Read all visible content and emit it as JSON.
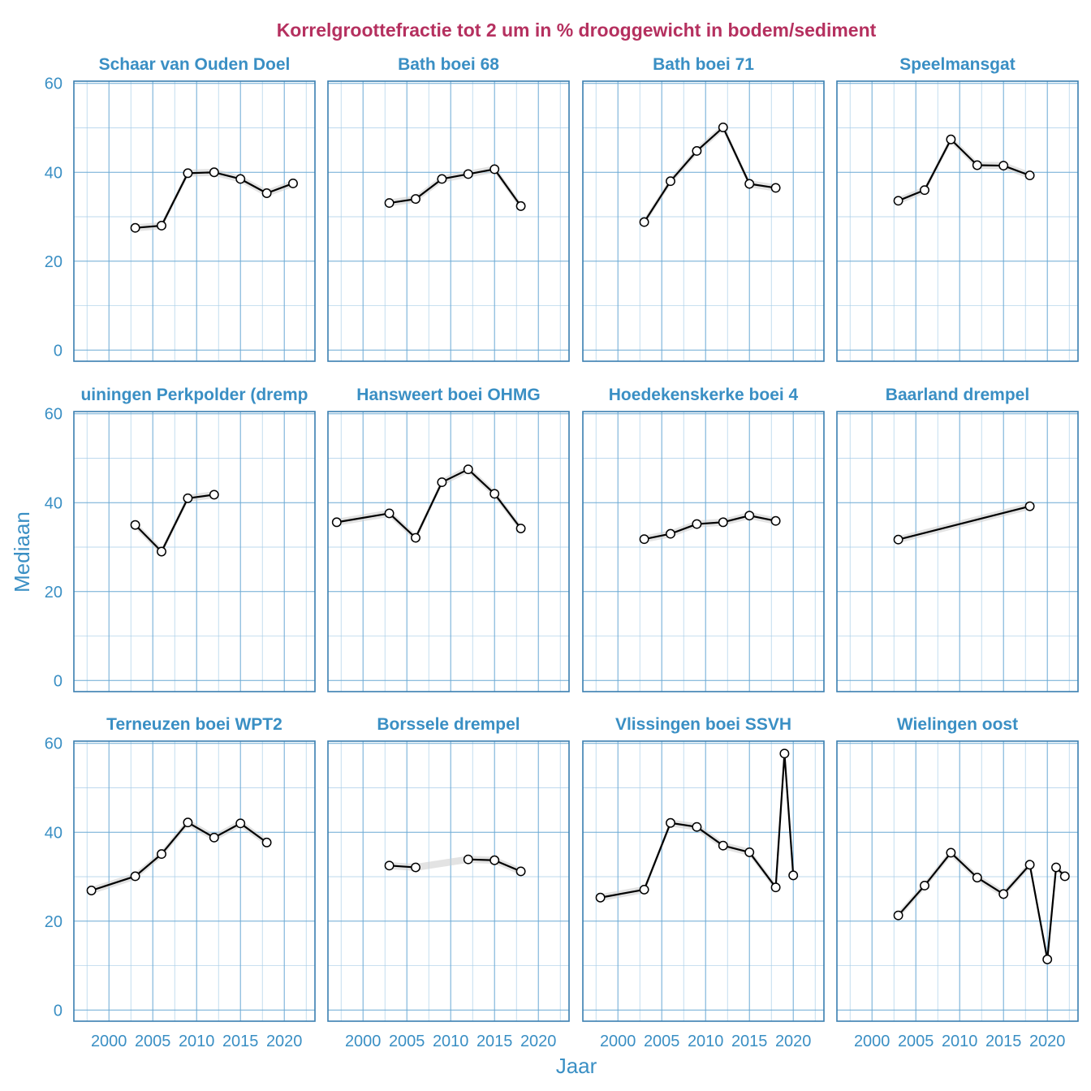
{
  "chart_data": {
    "type": "line",
    "title": "Korrelgroottefractie tot 2 um in % drooggewicht in bodem/sediment",
    "xlabel": "Jaar",
    "ylabel": "Mediaan",
    "xlim": [
      1996,
      2023.5
    ],
    "ylim": [
      -2.5,
      60.5
    ],
    "x_ticks": [
      2000,
      2005,
      2010,
      2015,
      2020
    ],
    "y_ticks": [
      0,
      20,
      40,
      60
    ],
    "colors": {
      "title": "#b5305f",
      "axis_text": "#3a8fc4",
      "panel_border": "#3a7fb0",
      "grid_major": "#6aa9d4",
      "grid_minor": "#a9cde8",
      "line": "#000000",
      "ribbon": "#cccccc"
    },
    "panels": [
      {
        "name": "Schaar van Ouden Doel",
        "x": [
          2003,
          2006,
          2009,
          2012,
          2015,
          2018,
          2021
        ],
        "y": [
          27.5,
          28.0,
          39.8,
          40.0,
          38.5,
          35.3,
          37.5
        ]
      },
      {
        "name": "Bath boei 68",
        "x": [
          2003,
          2006,
          2009,
          2012,
          2015,
          2018
        ],
        "y": [
          33.1,
          34.0,
          38.5,
          39.6,
          40.7,
          32.4
        ]
      },
      {
        "name": "Bath boei 71",
        "x": [
          2003,
          2006,
          2009,
          2012,
          2015,
          2018
        ],
        "y": [
          28.8,
          38.0,
          44.8,
          50.1,
          37.4,
          36.5
        ]
      },
      {
        "name": "Speelmansgat",
        "x": [
          2003,
          2006,
          2009,
          2012,
          2015,
          2018
        ],
        "y": [
          33.6,
          36.0,
          47.4,
          41.6,
          41.5,
          39.3
        ]
      },
      {
        "name": "Hansweert boei OHMG",
        "x": [
          1997,
          2003,
          2006,
          2009,
          2012,
          2015,
          2018
        ],
        "y": [
          35.6,
          37.6,
          32.1,
          44.6,
          47.5,
          42.0,
          34.2
        ]
      },
      {
        "name": "Hoedekenskerke boei 4",
        "x": [
          2003,
          2006,
          2009,
          2012,
          2015,
          2018
        ],
        "y": [
          31.8,
          33.0,
          35.2,
          35.6,
          37.1,
          35.9
        ]
      },
      {
        "name": "Baarland drempel",
        "x": [
          2003,
          2018
        ],
        "y": [
          31.7,
          39.2
        ]
      },
      {
        "name": "Terneuzen boei WPT2",
        "x": [
          1998,
          2003,
          2006,
          2009,
          2012,
          2015,
          2018
        ],
        "y": [
          26.9,
          30.1,
          35.1,
          42.2,
          38.8,
          42.0,
          37.7
        ]
      },
      {
        "name": "Borssele drempel",
        "x": [
          2003,
          2006,
          2012,
          2015,
          2018
        ],
        "y": [
          32.5,
          32.1,
          33.9,
          33.7,
          31.2
        ]
      },
      {
        "name": "Vlissingen boei SSVH",
        "x": [
          1998,
          2003,
          2006,
          2009,
          2012,
          2015,
          2018,
          2019,
          2020
        ],
        "y": [
          25.3,
          27.1,
          42.1,
          41.2,
          37.0,
          35.5,
          27.6,
          57.7,
          30.3
        ]
      },
      {
        "name": "Wielingen oost",
        "x": [
          2003,
          2006,
          2009,
          2012,
          2015,
          2018,
          2020,
          2021,
          2022
        ],
        "y": [
          21.3,
          28.0,
          35.4,
          29.8,
          26.1,
          32.7,
          11.4,
          32.1,
          30.1
        ]
      }
    ],
    "partial_panel": {
      "name": "uiningen Perkpolder (dremp",
      "x": [
        2003,
        2006,
        2009,
        2012
      ],
      "y": [
        35.0,
        29.0,
        41.0,
        41.8
      ]
    }
  }
}
